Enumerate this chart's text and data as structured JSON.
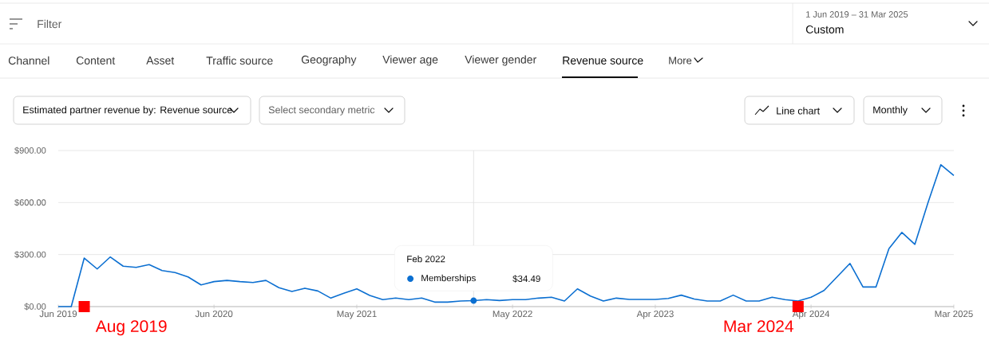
{
  "chart_data": {
    "type": "line",
    "title": "Estimated partner revenue by: Revenue source",
    "x": [
      "2019-06",
      "2019-07",
      "2019-08",
      "2019-09",
      "2019-10",
      "2019-11",
      "2019-12",
      "2020-01",
      "2020-02",
      "2020-03",
      "2020-04",
      "2020-05",
      "2020-06",
      "2020-07",
      "2020-08",
      "2020-09",
      "2020-10",
      "2020-11",
      "2020-12",
      "2021-01",
      "2021-02",
      "2021-03",
      "2021-04",
      "2021-05",
      "2021-06",
      "2021-07",
      "2021-08",
      "2021-09",
      "2021-10",
      "2021-11",
      "2021-12",
      "2022-01",
      "2022-02",
      "2022-03",
      "2022-04",
      "2022-05",
      "2022-06",
      "2022-07",
      "2022-08",
      "2022-09",
      "2022-10",
      "2022-11",
      "2022-12",
      "2023-01",
      "2023-02",
      "2023-03",
      "2023-04",
      "2023-05",
      "2023-06",
      "2023-07",
      "2023-08",
      "2023-09",
      "2023-10",
      "2023-11",
      "2023-12",
      "2024-01",
      "2024-02",
      "2024-03",
      "2024-04",
      "2024-05",
      "2024-06",
      "2024-07",
      "2024-08",
      "2024-09",
      "2024-10",
      "2024-11",
      "2024-12",
      "2025-01",
      "2025-02",
      "2025-03"
    ],
    "series": [
      {
        "name": "Memberships",
        "color": "#0b6fd1",
        "values": [
          0,
          0,
          280,
          217,
          286,
          233,
          226,
          242,
          208,
          196,
          171,
          125,
          144,
          151,
          144,
          139,
          151,
          109,
          87,
          106,
          90,
          49,
          77,
          102,
          64,
          40,
          49,
          40,
          49,
          26,
          26,
          32,
          34.49,
          40,
          35,
          40,
          40,
          49,
          54,
          32,
          102,
          61,
          32,
          49,
          41,
          41,
          41,
          47,
          66,
          44,
          32,
          32,
          66,
          32,
          32,
          54,
          40,
          32,
          54,
          93,
          171,
          249,
          113,
          113,
          334,
          428,
          359,
          597,
          818,
          756
        ]
      }
    ],
    "xlim": [
      "2019-06",
      "2025-03"
    ],
    "xticks": [
      {
        "value": "2019-06",
        "label": "Jun 2019"
      },
      {
        "value": "2020-06",
        "label": "Jun 2020"
      },
      {
        "value": "2021-05",
        "label": "May 2021"
      },
      {
        "value": "2022-05",
        "label": "May 2022"
      },
      {
        "value": "2023-04",
        "label": "Apr 2023"
      },
      {
        "value": "2024-04",
        "label": "Apr 2024"
      },
      {
        "value": "2025-03",
        "label": "Mar 2025"
      }
    ],
    "ylim": [
      0,
      900
    ],
    "yticks": [
      {
        "value": 0,
        "label": "$0.00"
      },
      {
        "value": 300,
        "label": "$300.00"
      },
      {
        "value": 600,
        "label": "$600.00"
      },
      {
        "value": 900,
        "label": "$900.00"
      }
    ],
    "grid": "y",
    "ref_lines": [
      {
        "axis": "x",
        "value": "2022-02",
        "color": "#e0e0e0"
      }
    ],
    "annotations": [
      "Filter",
      "1 Jun 2019 – 31 Mar 2025",
      "Custom",
      "Channel",
      "Content",
      "Asset",
      "Traffic source",
      "Geography",
      "Viewer age",
      "Viewer gender",
      "Revenue source",
      "More",
      "Select secondary metric",
      "Line chart",
      "Monthly",
      "Feb 2022",
      "$34.49",
      {
        "text": "Aug 2019",
        "x": "2019-08",
        "y": 0
      },
      {
        "text": "Mar 2024",
        "x": "2024-03",
        "y": 0
      }
    ]
  }
}
